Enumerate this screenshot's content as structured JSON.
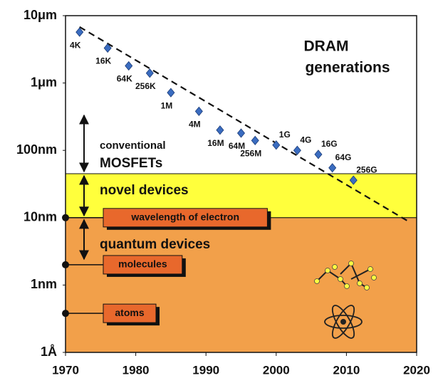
{
  "chart_data": {
    "type": "scatter",
    "annotations": {
      "dram": [
        "DRAM",
        "generations"
      ],
      "mosfet": [
        "conventional",
        "MOSFETs"
      ]
    },
    "x": [
      1972,
      1976,
      1979,
      1982,
      1985,
      1989,
      1992,
      1995,
      1997,
      2000,
      2003,
      2006,
      2008,
      2011
    ],
    "values": [
      5700,
      3300,
      1800,
      1400,
      720,
      380,
      200,
      180,
      140,
      120,
      100,
      87,
      55,
      36
    ],
    "point_labels": [
      "4K",
      "16K",
      "64K",
      "256K",
      "1M",
      "4M",
      "16M",
      "64M",
      "256M",
      "1G",
      "4G",
      "16G",
      "64G",
      "256G"
    ],
    "color": "#3a6cc0",
    "trend": {
      "x": [
        1972,
        2019
      ],
      "values": [
        6800,
        8.6
      ]
    },
    "regions": [
      {
        "label": "novel devices",
        "from": 10,
        "to": 45,
        "color": "#ffff3c"
      },
      {
        "label": "quantum devices",
        "from": 0.1,
        "to": 10,
        "color": "#f2a04a"
      }
    ],
    "callouts": [
      {
        "label": "wavelength of electron",
        "value": 10
      },
      {
        "label": "molecules",
        "value": 2
      },
      {
        "label": "atoms",
        "value": 0.38
      }
    ],
    "xlim": [
      1970,
      2020
    ],
    "xticks": [
      1970,
      1980,
      1990,
      2000,
      2010,
      2020
    ],
    "ylim": [
      0.1,
      10000
    ],
    "log_y": true,
    "yticks": [
      {
        "value": 0.1,
        "label": "1Å"
      },
      {
        "value": 1,
        "label": "1nm"
      },
      {
        "value": 10,
        "label": "10nm"
      },
      {
        "value": 100,
        "label": "100nm"
      },
      {
        "value": 1000,
        "label": "1μm"
      },
      {
        "value": 10000,
        "label": "10μm"
      }
    ],
    "grid": false
  }
}
